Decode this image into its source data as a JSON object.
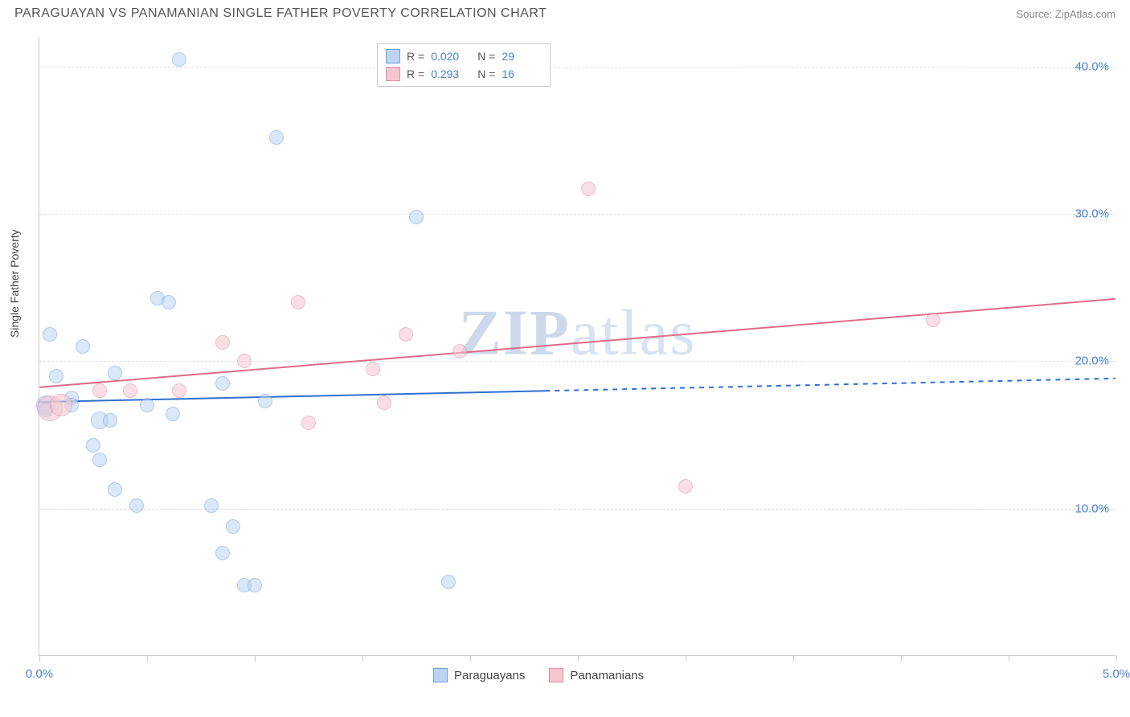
{
  "header": {
    "title": "PARAGUAYAN VS PANAMANIAN SINGLE FATHER POVERTY CORRELATION CHART",
    "source": "Source: ZipAtlas.com"
  },
  "chart": {
    "type": "scatter",
    "ylabel": "Single Father Poverty",
    "xlim": [
      0.0,
      5.0
    ],
    "ylim": [
      0.0,
      42.0
    ],
    "xtick_positions": [
      0.0,
      0.5,
      1.0,
      1.5,
      2.0,
      2.5,
      3.0,
      3.5,
      4.0,
      4.5,
      5.0
    ],
    "xtick_labels_shown": {
      "0.0": "0.0%",
      "5.0": "5.0%"
    },
    "ytick_positions": [
      10.0,
      20.0,
      30.0,
      40.0
    ],
    "ytick_labels": [
      "10.0%",
      "20.0%",
      "30.0%",
      "40.0%"
    ],
    "grid_color": "#dddddd",
    "axis_color": "#cccccc",
    "background_color": "#ffffff",
    "tick_label_color": "#4a7fd8",
    "watermark": {
      "zip": "ZIP",
      "atlas": "atlas"
    },
    "stats_legend": [
      {
        "fill": "#bcd4f0",
        "stroke": "#6f9fe0",
        "r_label": "R =",
        "r_value": "0.020",
        "n_label": "N =",
        "n_value": "29"
      },
      {
        "fill": "#f5c6d1",
        "stroke": "#e08ba0",
        "r_label": "R =",
        "r_value": "0.293",
        "n_label": "N =",
        "n_value": "16"
      }
    ],
    "series_legend": [
      {
        "fill": "#bcd4f0",
        "stroke": "#6f9fe0",
        "label": "Paraguayans"
      },
      {
        "fill": "#f5c6d1",
        "stroke": "#e08ba0",
        "label": "Panamanians"
      }
    ],
    "series": [
      {
        "name": "Paraguayans",
        "fill": "#bcd4f0",
        "stroke": "#6f9fe0",
        "fill_opacity": 0.55,
        "default_radius": 9,
        "trend": {
          "x1": 0.0,
          "y1": 17.2,
          "x2": 5.0,
          "y2": 18.8,
          "solid_until_x": 2.35,
          "color": "#2f6fd0",
          "width": 2
        },
        "points": [
          {
            "x": 0.03,
            "y": 17.0,
            "r": 12
          },
          {
            "x": 0.03,
            "y": 16.7,
            "r": 9
          },
          {
            "x": 0.05,
            "y": 21.8,
            "r": 9
          },
          {
            "x": 0.08,
            "y": 19.0,
            "r": 9
          },
          {
            "x": 0.15,
            "y": 17.5,
            "r": 9
          },
          {
            "x": 0.2,
            "y": 21.0,
            "r": 9
          },
          {
            "x": 0.25,
            "y": 14.3,
            "r": 9
          },
          {
            "x": 0.28,
            "y": 13.3,
            "r": 9
          },
          {
            "x": 0.28,
            "y": 16.0,
            "r": 11
          },
          {
            "x": 0.33,
            "y": 16.0,
            "r": 9
          },
          {
            "x": 0.35,
            "y": 19.2,
            "r": 9
          },
          {
            "x": 0.35,
            "y": 11.3,
            "r": 9
          },
          {
            "x": 0.45,
            "y": 10.2,
            "r": 9
          },
          {
            "x": 0.5,
            "y": 17.0,
            "r": 9
          },
          {
            "x": 0.55,
            "y": 24.3,
            "r": 9
          },
          {
            "x": 0.6,
            "y": 24.0,
            "r": 9
          },
          {
            "x": 0.62,
            "y": 16.4,
            "r": 9
          },
          {
            "x": 0.65,
            "y": 40.5,
            "r": 9
          },
          {
            "x": 0.8,
            "y": 10.2,
            "r": 9
          },
          {
            "x": 0.85,
            "y": 7.0,
            "r": 9
          },
          {
            "x": 0.85,
            "y": 18.5,
            "r": 9
          },
          {
            "x": 0.9,
            "y": 8.8,
            "r": 9
          },
          {
            "x": 0.95,
            "y": 4.8,
            "r": 9
          },
          {
            "x": 1.0,
            "y": 4.8,
            "r": 9
          },
          {
            "x": 1.05,
            "y": 17.3,
            "r": 9
          },
          {
            "x": 1.1,
            "y": 35.2,
            "r": 9
          },
          {
            "x": 1.75,
            "y": 29.8,
            "r": 9
          },
          {
            "x": 1.9,
            "y": 5.0,
            "r": 9
          },
          {
            "x": 0.15,
            "y": 17.0,
            "r": 9
          }
        ]
      },
      {
        "name": "Panamanians",
        "fill": "#f5c6d1",
        "stroke": "#e08ba0",
        "fill_opacity": 0.55,
        "default_radius": 9,
        "trend": {
          "x1": 0.0,
          "y1": 18.2,
          "x2": 5.0,
          "y2": 24.2,
          "solid_until_x": 5.0,
          "color": "#e06b88",
          "width": 2
        },
        "points": [
          {
            "x": 0.05,
            "y": 16.8,
            "r": 16
          },
          {
            "x": 0.1,
            "y": 17.0,
            "r": 14
          },
          {
            "x": 0.28,
            "y": 18.0,
            "r": 9
          },
          {
            "x": 0.42,
            "y": 18.0,
            "r": 9
          },
          {
            "x": 0.65,
            "y": 18.0,
            "r": 9
          },
          {
            "x": 0.85,
            "y": 21.3,
            "r": 9
          },
          {
            "x": 0.95,
            "y": 20.0,
            "r": 9
          },
          {
            "x": 1.2,
            "y": 24.0,
            "r": 9
          },
          {
            "x": 1.25,
            "y": 15.8,
            "r": 9
          },
          {
            "x": 1.55,
            "y": 19.5,
            "r": 9
          },
          {
            "x": 1.6,
            "y": 17.2,
            "r": 9
          },
          {
            "x": 1.7,
            "y": 21.8,
            "r": 9
          },
          {
            "x": 1.95,
            "y": 20.7,
            "r": 9
          },
          {
            "x": 2.55,
            "y": 31.7,
            "r": 9
          },
          {
            "x": 3.0,
            "y": 11.5,
            "r": 9
          },
          {
            "x": 4.15,
            "y": 22.8,
            "r": 9
          }
        ]
      }
    ]
  }
}
